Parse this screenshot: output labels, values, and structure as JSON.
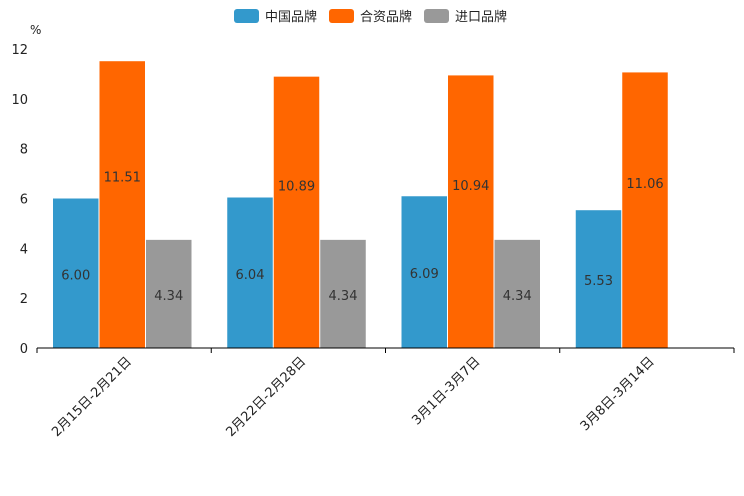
{
  "chart_data": {
    "type": "bar",
    "title": "",
    "xlabel": "",
    "ylabel": "%",
    "ylim": [
      0,
      12
    ],
    "yticks": [
      0,
      2,
      4,
      6,
      8,
      10,
      12
    ],
    "legend_position": "top-center",
    "categories": [
      "2月15日-2月21日",
      "2月22日-2月28日",
      "3月1日-3月7日",
      "3月8日-3月14日"
    ],
    "series": [
      {
        "name": "中国品牌",
        "color": "#3399cc",
        "values": [
          6.0,
          6.04,
          6.09,
          5.53
        ],
        "labels": [
          "6.00",
          "6.04",
          "6.09",
          "5.53"
        ]
      },
      {
        "name": "合资品牌",
        "color": "#ff6600",
        "values": [
          11.51,
          10.89,
          10.94,
          11.06
        ],
        "labels": [
          "11.51",
          "10.89",
          "10.94",
          "11.06"
        ]
      },
      {
        "name": "进口品牌",
        "color": "#999999",
        "values": [
          4.34,
          4.34,
          4.34,
          null
        ],
        "labels": [
          "4.34",
          "4.34",
          "4.34",
          null
        ]
      }
    ]
  }
}
